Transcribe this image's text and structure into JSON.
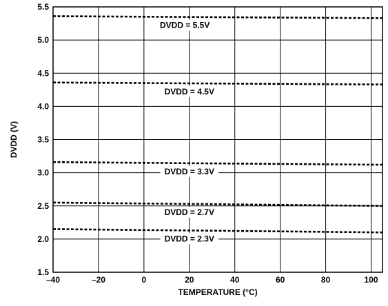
{
  "chart_data": {
    "type": "line",
    "title": "",
    "xlabel": "TEMPERATURE (°C)",
    "ylabel": "DVDD (V)",
    "xlim": [
      -40,
      105
    ],
    "ylim": [
      1.5,
      5.5
    ],
    "x_ticks": [
      -40,
      -20,
      0,
      20,
      40,
      60,
      80,
      100
    ],
    "x_tick_labels": [
      "–40",
      "–20",
      "0",
      "20",
      "40",
      "60",
      "80",
      "100"
    ],
    "y_ticks": [
      1.5,
      2.0,
      2.5,
      3.0,
      3.5,
      4.0,
      4.5,
      5.0,
      5.5
    ],
    "y_tick_labels": [
      "1.5",
      "2.0",
      "2.5",
      "3.0",
      "3.5",
      "4.0",
      "4.5",
      "5.0",
      "5.5"
    ],
    "grid": true,
    "x": [
      -40,
      105
    ],
    "series": [
      {
        "name": "DVDD = 5.5V",
        "values": [
          5.36,
          5.33
        ],
        "label_x": 18
      },
      {
        "name": "DVDD = 4.5V",
        "values": [
          4.36,
          4.33
        ],
        "label_x": 20
      },
      {
        "name": "DVDD = 3.3V",
        "values": [
          3.16,
          3.12
        ],
        "label_x": 20
      },
      {
        "name": "DVDD = 2.7V",
        "values": [
          2.55,
          2.5
        ],
        "label_x": 20
      },
      {
        "name": "DVDD = 2.3V",
        "values": [
          2.15,
          2.1
        ],
        "label_x": 20
      }
    ]
  }
}
